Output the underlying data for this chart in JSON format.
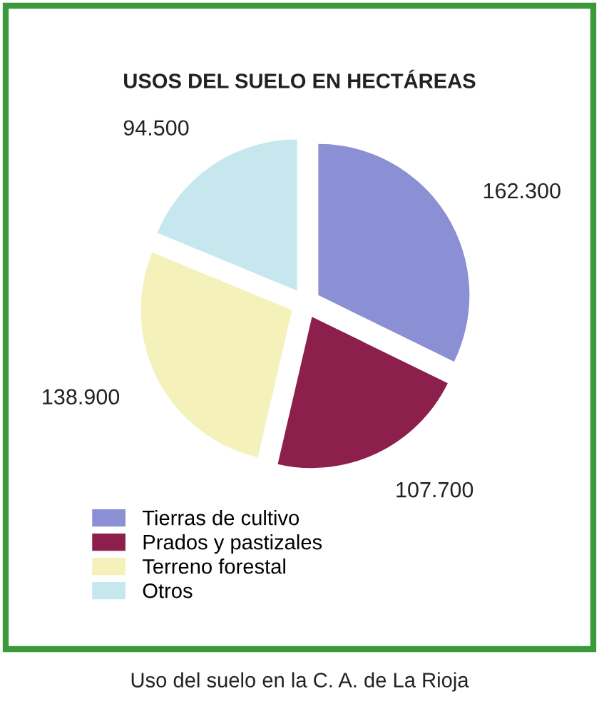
{
  "chart_data": {
    "type": "pie",
    "title": "USOS DEL SUELO EN HECTÁREAS",
    "categories": [
      "Tierras de cultivo",
      "Prados y pastizales",
      "Terreno forestal",
      "Otros"
    ],
    "values": [
      162300,
      107700,
      138900,
      94500
    ],
    "value_labels": [
      "162.300",
      "107.700",
      "138.900",
      "94.500"
    ],
    "colors": [
      "#8b8fd3",
      "#8c1f4c",
      "#f5f1bb",
      "#c6e7ee"
    ],
    "legend": "bottom left",
    "annotations": [
      "Uso del suelo en la C. A. de La Rioja"
    ]
  }
}
